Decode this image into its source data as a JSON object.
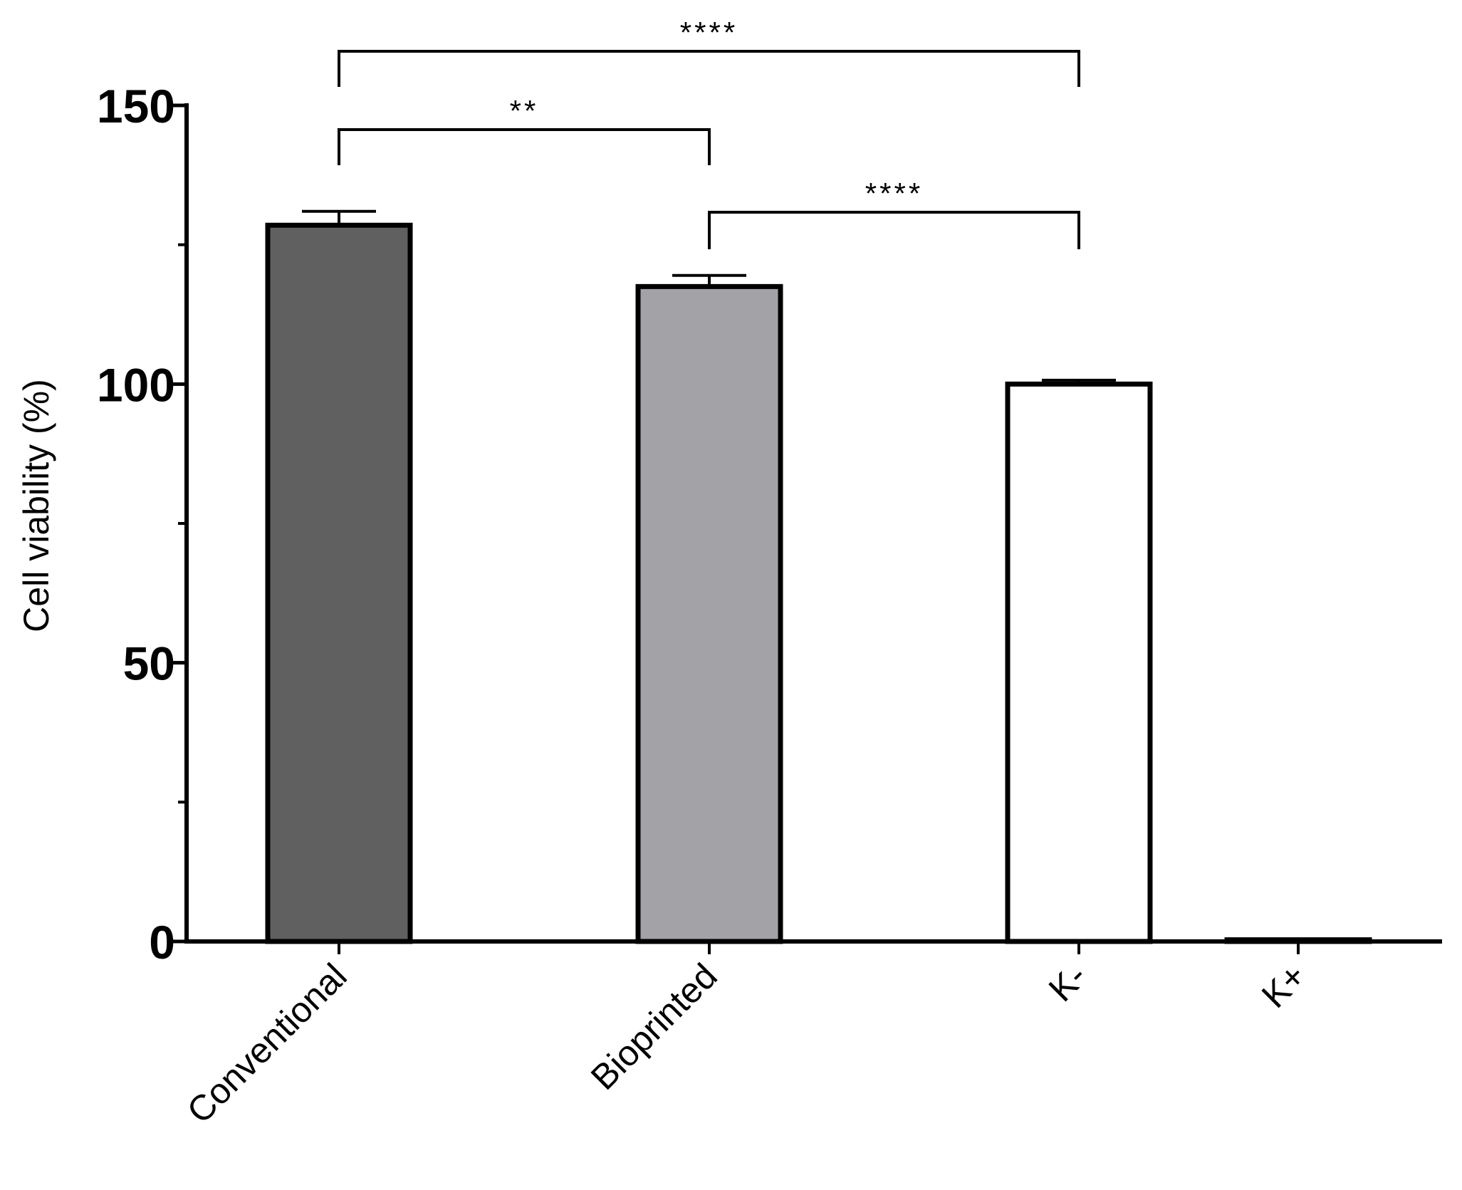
{
  "chart_data": {
    "type": "bar",
    "title": "",
    "xlabel": "",
    "ylabel": "Cell viability (%)",
    "categories": [
      "Conventional",
      "Bioprinted",
      "K-",
      "K+"
    ],
    "values": [
      128.5,
      117.5,
      100,
      0.3
    ],
    "errors": [
      2.5,
      2,
      0.7,
      0.2
    ],
    "colors": [
      "#606060",
      "#a3a3a7",
      "#ffffff",
      "#ffffff"
    ],
    "ylim": [
      0,
      150
    ],
    "yticks_major": [
      0,
      50,
      100,
      150
    ],
    "yticks_minor": [
      25,
      75,
      125
    ],
    "ytick_labels": [
      "0",
      "50",
      "100",
      "150"
    ],
    "grid": false,
    "significance": [
      {
        "from": 0,
        "to": 2,
        "label": "****"
      },
      {
        "from": 0,
        "to": 1,
        "label": "**"
      },
      {
        "from": 1,
        "to": 2,
        "label": "****"
      }
    ]
  }
}
